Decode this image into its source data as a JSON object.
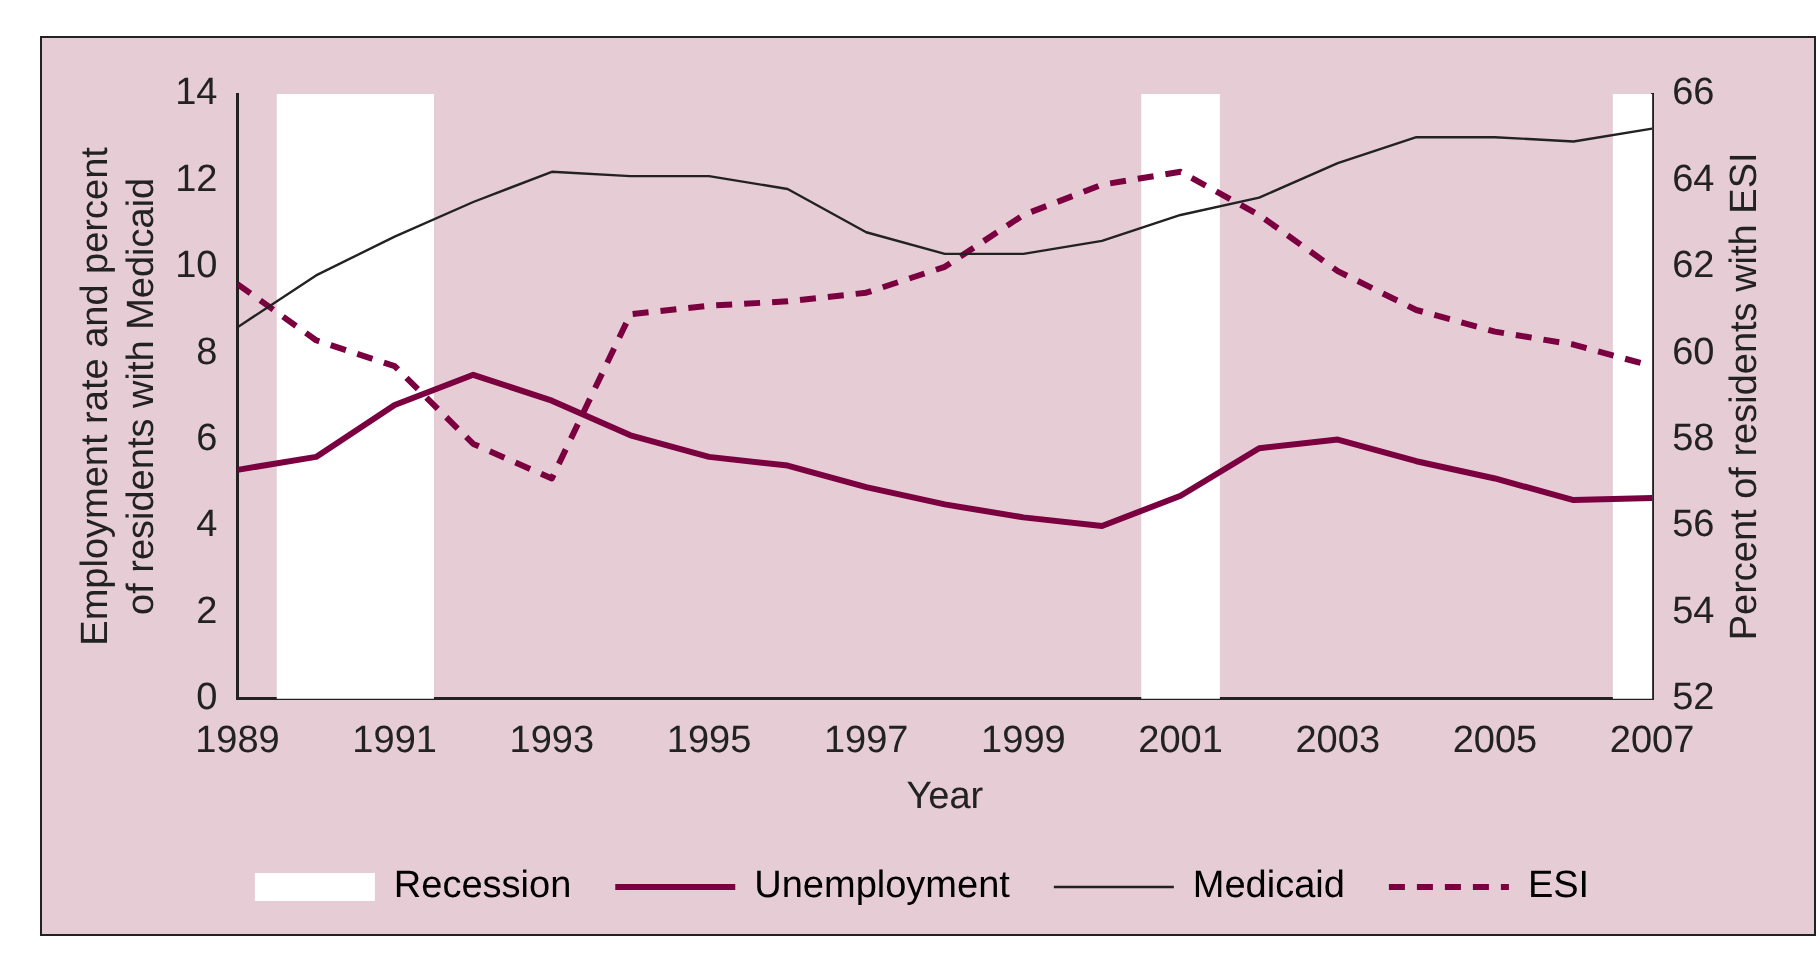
{
  "chart_data": {
    "type": "line",
    "xlabel": "Year",
    "ylabel": "Employment rate and percent of residents with Medicaid",
    "y2label": "Percent of residents with ESI",
    "x": [
      1989,
      1990,
      1991,
      1992,
      1993,
      1994,
      1995,
      1996,
      1997,
      1998,
      1999,
      2000,
      2001,
      2002,
      2003,
      2004,
      2005,
      2006,
      2007
    ],
    "xlim": [
      1989,
      2007
    ],
    "xticks": [
      1989,
      1991,
      1993,
      1995,
      1997,
      1999,
      2001,
      2003,
      2005,
      2007
    ],
    "ylim": [
      0,
      14
    ],
    "yticks": [
      0,
      2,
      4,
      6,
      8,
      10,
      12,
      14
    ],
    "y2lim": [
      52,
      66
    ],
    "y2ticks": [
      52,
      54,
      56,
      58,
      60,
      62,
      64,
      66
    ],
    "series": [
      {
        "name": "Unemployment",
        "color": "#7a0040",
        "line_style": "solid",
        "values": [
          5.3,
          5.6,
          6.8,
          7.5,
          6.9,
          6.1,
          5.6,
          5.4,
          4.9,
          4.5,
          4.2,
          4.0,
          4.7,
          5.8,
          6.0,
          5.5,
          5.1,
          4.6,
          4.65
        ]
      },
      {
        "name": "Medicaid",
        "color": "#222222",
        "line_style": "solid",
        "values": [
          8.6,
          9.8,
          10.7,
          11.5,
          12.2,
          12.1,
          12.1,
          11.8,
          10.8,
          10.3,
          10.3,
          10.6,
          11.2,
          11.6,
          12.4,
          13.0,
          13.0,
          12.9,
          13.2
        ]
      },
      {
        "name": "ESI",
        "color": "#7a0040",
        "line_style": "dashed",
        "axis": "y2",
        "values": [
          61.6,
          60.3,
          59.7,
          57.9,
          57.1,
          60.9,
          61.1,
          61.2,
          61.4,
          62.0,
          63.2,
          63.9,
          64.2,
          63.2,
          61.9,
          61.0,
          60.5,
          60.2,
          59.7
        ]
      }
    ],
    "bands": [
      {
        "axis": "x",
        "from": 1989.5,
        "to": 1991.5,
        "label": "Recession",
        "color": "#ffffff"
      },
      {
        "axis": "x",
        "from": 2000.5,
        "to": 2001.5,
        "color": "#ffffff"
      },
      {
        "axis": "x",
        "from": 2006.5,
        "to": 2007,
        "color": "#ffffff"
      }
    ],
    "grid": false,
    "legend": "bottom",
    "marker": "none"
  }
}
